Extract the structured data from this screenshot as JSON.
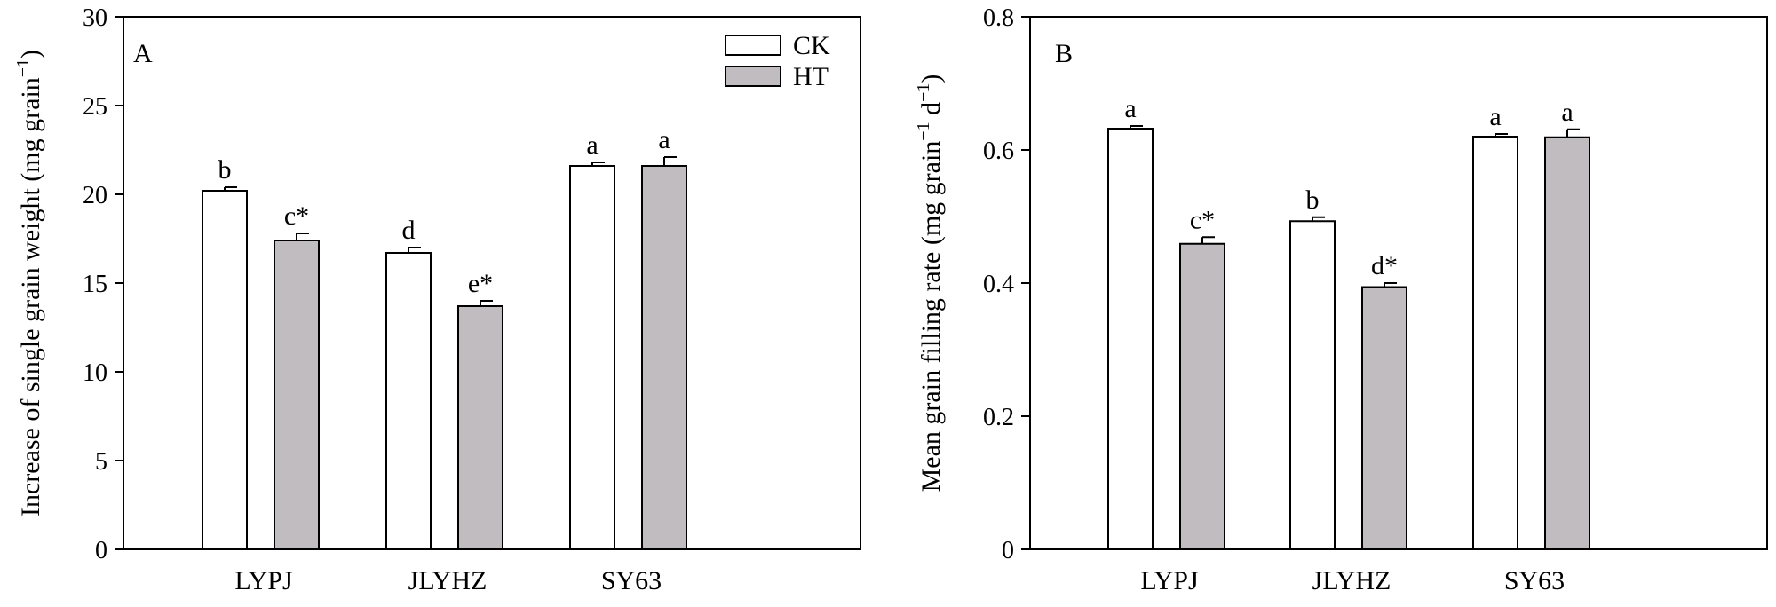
{
  "legend": [
    {
      "name": "CK",
      "color": "#ffffff"
    },
    {
      "name": "HT",
      "color": "#c0bcc0"
    }
  ],
  "chart_data": [
    {
      "type": "bar",
      "panel": "A",
      "title": "",
      "xlabel": "",
      "ylabel": "Increase of single grain weight (mg grain",
      "ylabel_sup": "−1",
      "ylabel_close": ")",
      "ylim": [
        0,
        30
      ],
      "yticks": [
        "0",
        "5",
        "10",
        "15",
        "20",
        "25",
        "30"
      ],
      "categories": [
        "LYPJ",
        "JLYHZ",
        "SY63"
      ],
      "series": [
        {
          "name": "CK",
          "values": [
            20.2,
            16.7,
            21.6
          ],
          "errors": [
            0.2,
            0.3,
            0.2
          ],
          "labels": [
            "b",
            "d",
            "a"
          ]
        },
        {
          "name": "HT",
          "values": [
            17.4,
            13.7,
            21.6
          ],
          "errors": [
            0.4,
            0.3,
            0.5
          ],
          "labels": [
            "c*",
            "e*",
            "a"
          ]
        }
      ],
      "legend_position": "top-right",
      "grid": false
    },
    {
      "type": "bar",
      "panel": "B",
      "title": "",
      "xlabel": "",
      "ylabel": "Mean grain filling rate (mg grain",
      "ylabel_sup": "−1",
      "ylabel_mid": " d",
      "ylabel_sup2": "−1",
      "ylabel_close": ")",
      "ylim": [
        0,
        0.8
      ],
      "yticks": [
        "0",
        "0.2",
        "0.4",
        "0.6",
        "0.8"
      ],
      "categories": [
        "LYPJ",
        "JLYHZ",
        "SY63"
      ],
      "series": [
        {
          "name": "CK",
          "values": [
            0.632,
            0.493,
            0.62
          ],
          "errors": [
            0.004,
            0.006,
            0.004
          ],
          "labels": [
            "a",
            "b",
            "a"
          ]
        },
        {
          "name": "HT",
          "values": [
            0.459,
            0.394,
            0.619
          ],
          "errors": [
            0.01,
            0.006,
            0.012
          ],
          "labels": [
            "c*",
            "d*",
            "a"
          ]
        }
      ],
      "grid": false
    }
  ]
}
